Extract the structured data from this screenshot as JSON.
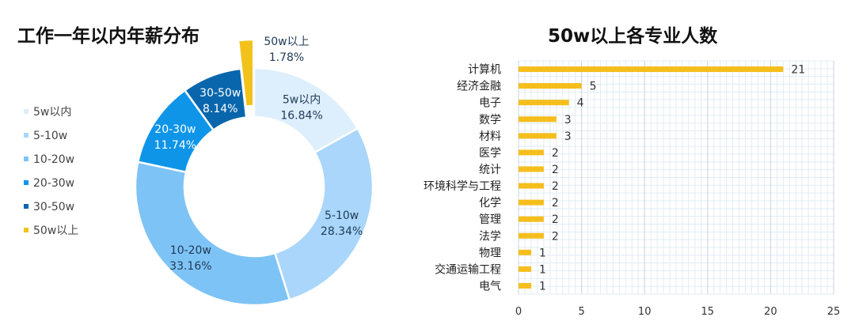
{
  "chart_data": [
    {
      "type": "pie",
      "title": "工作一年以内年薪分布",
      "categories": [
        "5w以内",
        "5-10w",
        "10-20w",
        "20-30w",
        "30-50w",
        "50w以上"
      ],
      "values": [
        16.84,
        28.34,
        33.16,
        11.74,
        8.14,
        1.78
      ],
      "value_labels": [
        "16.84%",
        "28.34%",
        "33.16%",
        "11.74%",
        "8.14%",
        "1.78%"
      ],
      "colors": [
        "#ddeefc",
        "#a9d6fa",
        "#7ec3f5",
        "#0f95e8",
        "#0966ac",
        "#f2c21b"
      ],
      "legend": "left",
      "donut": true
    },
    {
      "type": "bar",
      "orientation": "horizontal",
      "title": "50w以上各专业人数",
      "categories": [
        "计算机",
        "经济金融",
        "电子",
        "数学",
        "材料",
        "医学",
        "统计",
        "环境科学与工程",
        "化学",
        "管理",
        "法学",
        "物理",
        "交通运输工程",
        "电气"
      ],
      "values": [
        21,
        5,
        4,
        3,
        3,
        2,
        2,
        2,
        2,
        2,
        2,
        1,
        1,
        1
      ],
      "xlim": [
        0,
        25
      ],
      "xticks": [
        0,
        5,
        10,
        15,
        20,
        25
      ],
      "grid": true,
      "color": "#f5be1c"
    }
  ]
}
